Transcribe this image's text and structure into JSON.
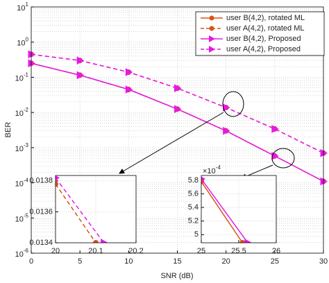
{
  "chart_data": [
    {
      "type": "line",
      "xlabel": "SNR (dB)",
      "ylabel": "BER",
      "log_y": true,
      "grid": true,
      "x": [
        0,
        5,
        10,
        15,
        20,
        25,
        30
      ],
      "xlim": [
        0,
        30
      ],
      "xticks": [
        0,
        5,
        10,
        15,
        20,
        25,
        30
      ],
      "ylim": [
        1e-06,
        10
      ],
      "yticks": [
        {
          "value": 1e-06,
          "label": "10",
          "exponent": "-6"
        },
        {
          "value": 1e-05,
          "label": "10",
          "exponent": "-5"
        },
        {
          "value": 0.0001,
          "label": "10",
          "exponent": "-4"
        },
        {
          "value": 0.001,
          "label": "10",
          "exponent": "-3"
        },
        {
          "value": 0.01,
          "label": "10",
          "exponent": "-2"
        },
        {
          "value": 0.1,
          "label": "10",
          "exponent": "-1"
        },
        {
          "value": 1,
          "label": "10",
          "exponent": "0"
        },
        {
          "value": 10,
          "label": "10",
          "exponent": "1"
        }
      ],
      "legend": "upper right",
      "series": [
        {
          "name": "user B(4,2), rotated ML",
          "color": "#d95319",
          "dash": false,
          "marker": "circle",
          "values": [
            0.25,
            0.115,
            0.045,
            0.0125,
            0.003,
            0.00058,
            0.00011
          ]
        },
        {
          "name": "user A(4,2), rotated ML",
          "color": "#d95319",
          "dash": true,
          "marker": "circle",
          "values": [
            0.45,
            0.3,
            0.14,
            0.049,
            0.0138,
            0.0034,
            0.0007
          ]
        },
        {
          "name": "user B(4,2), Proposed",
          "color": "#e619e6",
          "dash": false,
          "marker": "triangle",
          "values": [
            0.25,
            0.115,
            0.045,
            0.0125,
            0.003,
            0.00058,
            0.00011
          ]
        },
        {
          "name": "user A(4,2), Proposed",
          "color": "#e619e6",
          "dash": true,
          "marker": "triangle",
          "values": [
            0.45,
            0.3,
            0.14,
            0.049,
            0.0138,
            0.0034,
            0.0007
          ]
        }
      ]
    },
    {
      "type": "line",
      "grid": true,
      "xlim": [
        20,
        20.2
      ],
      "xticks": [
        20,
        20.1,
        20.2
      ],
      "ylim": [
        0.0134,
        0.013835
      ],
      "yticks": [
        0.0134,
        0.0136,
        0.0138
      ],
      "series": [
        {
          "color": "#d95319",
          "dash": true,
          "marker": "circle",
          "x": [
            20,
            20.1
          ],
          "values": [
            0.01378,
            0.0134
          ]
        },
        {
          "color": "#e619e6",
          "dash": true,
          "marker": "triangle",
          "x": [
            20,
            20.12
          ],
          "values": [
            0.01382,
            0.0134
          ]
        }
      ]
    },
    {
      "type": "line",
      "grid": true,
      "xlim": [
        25,
        26
      ],
      "xticks": [
        25,
        25.5,
        26
      ],
      "ylim": [
        4.88,
        5.87
      ],
      "yticks": [
        5,
        5.2,
        5.4,
        5.6,
        5.8
      ],
      "y_multiplier": {
        "label": "×10",
        "exponent": "-4"
      },
      "series": [
        {
          "color": "#d95319",
          "dash": false,
          "marker": "circle",
          "x": [
            25,
            25.55
          ],
          "values": [
            5.78,
            4.88
          ]
        },
        {
          "color": "#e619e6",
          "dash": false,
          "marker": "triangle",
          "x": [
            25,
            25.62
          ],
          "values": [
            5.82,
            4.88
          ]
        }
      ]
    }
  ]
}
